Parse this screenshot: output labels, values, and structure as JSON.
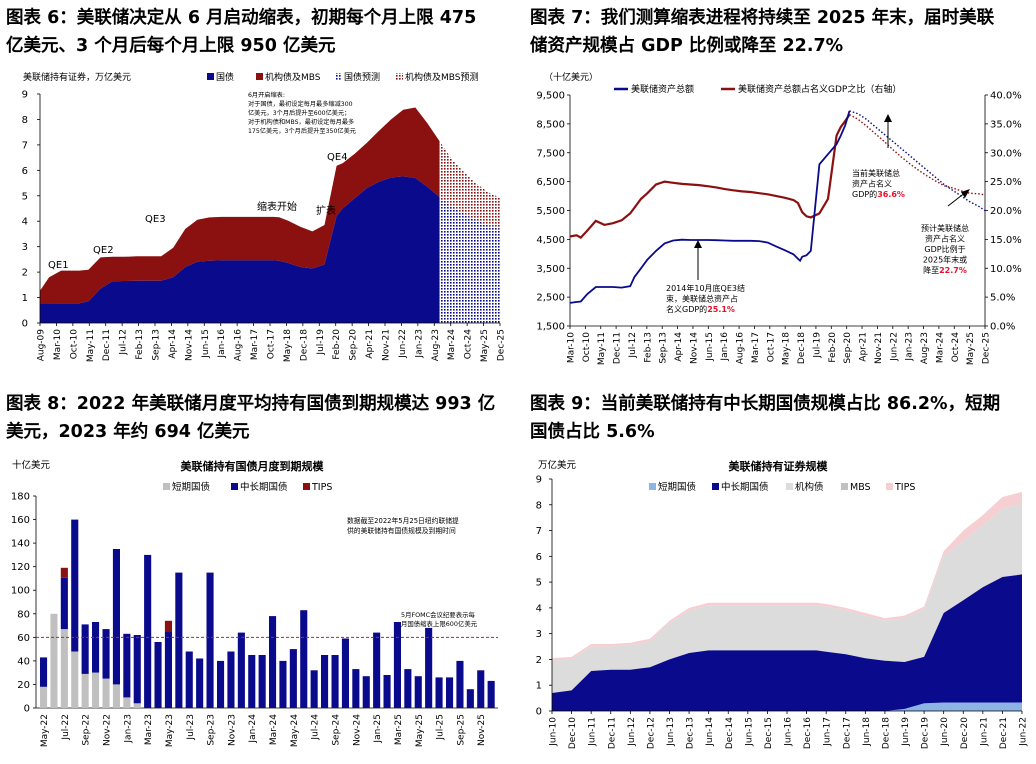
{
  "figures": [
    {
      "title_line1": "图表 6：美联储决定从 6 月启动缩表，初期每个月上限 475",
      "title_line2": "亿美元、3 个月后每个月上限 950 亿美元"
    },
    {
      "title_line1": "图表 7：我们测算缩表进程将持续至 2025 年末，届时美联",
      "title_line2": "储资产规模占 GDP 比例或降至 22.7%"
    },
    {
      "title_line1": "图表 8：2022 年美联储月度平均持有国债到期规模达 993 亿",
      "title_line2": "美元，2023 年约 694 亿美元"
    },
    {
      "title_line1": "图表 9：当前美联储持有中长期国债规模占比 86.2%，短期",
      "title_line2": "国债占比 5.6%"
    }
  ],
  "colors": {
    "navy": "#0a0a8c",
    "maroon": "#8b1010",
    "gray": "#c0c0c0",
    "light_gray": "#dcdcdc",
    "pink": "#f6cfd2",
    "light_blue": "#8cb4e4",
    "red": "#e8102a",
    "dash_red": "#c0202a"
  },
  "chart_data": [
    {
      "id": "fig6",
      "type": "area",
      "ylabel": "美联储持有证券，万亿美元",
      "ylim": [
        0,
        9
      ],
      "yticks": [
        "0",
        "1",
        "2",
        "3",
        "4",
        "5",
        "6",
        "7",
        "8",
        "9"
      ],
      "x_ticks": [
        "Aug-09",
        "Mar-10",
        "Oct-10",
        "May-11",
        "Dec-11",
        "Jul-12",
        "Feb-13",
        "Sep-13",
        "Apr-14",
        "Nov-14",
        "Jun-15",
        "Jan-16",
        "Aug-16",
        "Mar-17",
        "Oct-17",
        "May-18",
        "Dec-18",
        "Jul-19",
        "Feb-20",
        "Sep-20",
        "Apr-21",
        "Nov-21",
        "Jun-22",
        "Jan-23",
        "Aug-23",
        "Mar-24",
        "Oct-24",
        "May-25",
        "Dec-25"
      ],
      "legend": [
        {
          "label": "国债",
          "swatch": "navy"
        },
        {
          "label": "机构债及MBS",
          "swatch": "maroon"
        },
        {
          "label": "国债预测",
          "swatch": "navy-pattern"
        },
        {
          "label": "机构债及MBS预测",
          "swatch": "maroon-pattern"
        }
      ],
      "series_x": [
        0,
        3,
        7,
        10,
        13,
        16,
        20,
        24,
        28,
        32,
        36,
        40,
        44,
        48,
        52,
        56,
        60,
        64,
        68,
        72,
        75,
        76,
        77,
        79,
        82,
        86,
        90,
        94,
        98,
        100,
        104,
        108,
        112,
        116,
        120,
        124,
        128,
        132,
        136,
        140,
        144,
        148,
        152
      ],
      "treasury": [
        0.77,
        0.77,
        0.78,
        0.78,
        0.78,
        0.85,
        1.35,
        1.64,
        1.65,
        1.66,
        1.66,
        1.66,
        1.8,
        2.2,
        2.41,
        2.45,
        2.46,
        2.46,
        2.46,
        2.46,
        2.46,
        2.46,
        2.46,
        2.45,
        2.36,
        2.2,
        2.14,
        2.3,
        4.2,
        4.5,
        4.9,
        5.3,
        5.55,
        5.72,
        5.76,
        5.7,
        5.35,
        4.95,
        4.6,
        4.3,
        4.05,
        3.85,
        3.7
      ],
      "total": [
        1.27,
        1.8,
        2.06,
        2.06,
        2.06,
        2.09,
        2.58,
        2.6,
        2.6,
        2.62,
        2.62,
        2.62,
        2.96,
        3.7,
        4.06,
        4.15,
        4.17,
        4.17,
        4.17,
        4.17,
        4.17,
        4.17,
        4.17,
        4.16,
        4.02,
        3.78,
        3.6,
        3.85,
        6.18,
        6.28,
        6.65,
        7.08,
        7.55,
        8.0,
        8.38,
        8.47,
        7.85,
        7.15,
        6.45,
        5.95,
        5.5,
        5.15,
        4.92
      ],
      "forecast_start_index": 37,
      "annotations": [
        {
          "label": "QE1"
        },
        {
          "label": "QE2"
        },
        {
          "label": "QE3"
        },
        {
          "label": "缩表开始"
        },
        {
          "label": "扩表"
        },
        {
          "label": "QE4"
        }
      ],
      "note_lines": [
        "6月开启缩表:",
        "对于国债，最初设定每月最多缩减300",
        "亿美元，3个月后提升至600亿美元；",
        "对于机构债和MBS，最初设定每月最多",
        "175亿美元，3个月后提升至350亿美元"
      ]
    },
    {
      "id": "fig7",
      "type": "line",
      "unit_label": "（十亿美元）",
      "y_left_lim": [
        1500,
        9500
      ],
      "y_left_ticks": [
        "1,500",
        "2,500",
        "3,500",
        "4,500",
        "5,500",
        "6,500",
        "7,500",
        "8,500",
        "9,500"
      ],
      "y_right_lim": [
        0,
        40
      ],
      "y_right_ticks": [
        "0.0%",
        "5.0%",
        "10.0%",
        "15.0%",
        "20.0%",
        "25.0%",
        "30.0%",
        "35.0%",
        "40.0%"
      ],
      "x_ticks": [
        "Mar-10",
        "Oct-10",
        "May-11",
        "Dec-11",
        "Jul-12",
        "Feb-13",
        "Sep-13",
        "Apr-14",
        "Nov-14",
        "Jun-15",
        "Jan-16",
        "Aug-16",
        "Mar-17",
        "Oct-17",
        "May-18",
        "Dec-18",
        "Jul-19",
        "Feb-20",
        "Sep-20",
        "Apr-21",
        "Nov-21",
        "Jun-22",
        "Jan-23",
        "Aug-23",
        "Mar-24",
        "Oct-24",
        "May-25",
        "Dec-25"
      ],
      "legend": [
        {
          "label": "美联储资产总额",
          "swatch": "navy"
        },
        {
          "label": "美联储资产总额占名义GDP之比（右轴）",
          "swatch": "maroon"
        }
      ],
      "assets_x": [
        0,
        3,
        5,
        8,
        12,
        16,
        20,
        24,
        28,
        30,
        33,
        36,
        40,
        44,
        48,
        52,
        56,
        60,
        64,
        68,
        72,
        76,
        80,
        84,
        88,
        92,
        96,
        100,
        104,
        106,
        107,
        108,
        110,
        112,
        116,
        120,
        124,
        126,
        128,
        130
      ],
      "assets": [
        2300,
        2330,
        2350,
        2600,
        2850,
        2850,
        2850,
        2830,
        2880,
        3200,
        3500,
        3800,
        4100,
        4360,
        4460,
        4490,
        4480,
        4480,
        4480,
        4470,
        4460,
        4450,
        4450,
        4450,
        4440,
        4390,
        4250,
        4120,
        3980,
        3830,
        3760,
        3900,
        3950,
        4100,
        7100,
        7450,
        7800,
        8100,
        8450,
        8950
      ],
      "gdp_ratio": [
        15.5,
        15.7,
        15.3,
        16.5,
        18.2,
        17.5,
        17.8,
        18.3,
        19.5,
        20.5,
        22,
        23,
        24.5,
        25.0,
        24.8,
        24.6,
        24.5,
        24.4,
        24.2,
        24.0,
        23.7,
        23.5,
        23.3,
        23.2,
        23.0,
        22.8,
        22.5,
        22.2,
        21.8,
        21.3,
        20.5,
        19.7,
        19.0,
        18.8,
        19.5,
        22,
        33,
        34.5,
        35.5,
        36.6
      ],
      "forecast_x": [
        130,
        134,
        138,
        142,
        146,
        150,
        154,
        158,
        162,
        166,
        170,
        174,
        178,
        182,
        186,
        190,
        193
      ],
      "assets_forecast": [
        8950,
        8850,
        8650,
        8400,
        8150,
        7900,
        7650,
        7400,
        7150,
        6900,
        6650,
        6400,
        6200,
        6000,
        5800,
        5650,
        5500
      ],
      "gdp_ratio_forecast": [
        36.6,
        35.8,
        34.6,
        33.3,
        32.0,
        30.6,
        29.3,
        28.1,
        27.0,
        26.0,
        25.1,
        24.3,
        23.9,
        23.4,
        23.0,
        22.9,
        22.7
      ],
      "annotation_2014": {
        "lines": [
          "2014年10月底QE3结",
          "束，美联储总资产占",
          "名义GDP的"
        ],
        "value": "25.1%"
      },
      "annotation_current": {
        "lines": [
          "当前美联储总",
          "资产占名义",
          "GDP的"
        ],
        "value": "36.6%"
      },
      "annotation_forecast": {
        "lines": [
          "预计美联储总",
          "资产占名义",
          "GDP比例于",
          "2025年末或",
          "降至"
        ],
        "value": "22.7%"
      }
    },
    {
      "id": "fig8",
      "type": "bar",
      "title": "美联储持有国债月度到期规模",
      "unit": "十亿美元",
      "ylim": [
        0,
        180
      ],
      "yticks": [
        "0",
        "20",
        "40",
        "60",
        "80",
        "100",
        "120",
        "140",
        "160",
        "180"
      ],
      "x_ticks": [
        "May-22",
        "Jul-22",
        "Sep-22",
        "Nov-22",
        "Jan-23",
        "Mar-23",
        "May-23",
        "Jul-23",
        "Sep-23",
        "Nov-23",
        "Jan-24",
        "Mar-24",
        "May-24",
        "Jul-24",
        "Sep-24",
        "Nov-24",
        "Jan-25",
        "Mar-25",
        "May-25",
        "Jul-25",
        "Sep-25",
        "Nov-25"
      ],
      "legend": [
        {
          "label": "短期国债",
          "swatch": "gray"
        },
        {
          "label": "中长期国债",
          "swatch": "navy"
        },
        {
          "label": "TIPS",
          "swatch": "maroon"
        }
      ],
      "bills": [
        18,
        80,
        67,
        48,
        29,
        30,
        25,
        20,
        9,
        4,
        0,
        0,
        0,
        0,
        0,
        0,
        0,
        0,
        0,
        0,
        0,
        0,
        0,
        0,
        0,
        0,
        0,
        0,
        0,
        0,
        0,
        0,
        0,
        0,
        0,
        0,
        0,
        0,
        0,
        0,
        0,
        0,
        0,
        0
      ],
      "coupons": [
        25,
        0,
        44,
        112,
        42,
        43,
        42,
        115,
        54,
        58,
        130,
        56,
        65,
        115,
        48,
        42,
        115,
        40,
        48,
        64,
        45,
        45,
        78,
        40,
        50,
        83,
        32,
        45,
        45,
        59,
        33,
        27,
        64,
        28,
        73,
        33,
        27,
        68,
        26,
        26,
        40,
        16,
        32,
        23
      ],
      "tips": [
        0,
        0,
        8,
        0,
        0,
        0,
        0,
        0,
        0,
        0,
        0,
        0,
        9,
        0,
        0,
        0,
        0,
        0,
        0,
        0,
        0,
        0,
        0,
        0,
        0,
        0,
        0,
        0,
        0,
        0,
        0,
        0,
        0,
        0,
        0,
        0,
        0,
        0,
        0,
        0,
        0,
        0,
        0,
        0
      ],
      "cap_line": 60,
      "note_lines": [
        "数据截至2022年5月25日纽约联储提",
        "供的美联储持有国债规模及到期时间"
      ],
      "cap_note_lines": [
        "5月FOMC会议纪要表示每",
        "月国债缩表上限600亿美元"
      ]
    },
    {
      "id": "fig9",
      "type": "area",
      "title": "美联储持有证券规模",
      "unit": "万亿美元",
      "ylim": [
        0,
        9
      ],
      "yticks": [
        "0",
        "1",
        "2",
        "3",
        "4",
        "5",
        "6",
        "7",
        "8",
        "9"
      ],
      "x_ticks": [
        "Jun-10",
        "Dec-10",
        "Jun-11",
        "Dec-11",
        "Jun-12",
        "Dec-12",
        "Jun-13",
        "Dec-13",
        "Jun-14",
        "Dec-14",
        "Jun-15",
        "Dec-15",
        "Jun-16",
        "Dec-16",
        "Jun-17",
        "Dec-17",
        "Jun-18",
        "Dec-18",
        "Jun-19",
        "Dec-19",
        "Jun-20",
        "Dec-20",
        "Jun-21",
        "Dec-21",
        "Jun-22"
      ],
      "legend": [
        {
          "label": "短期国债",
          "swatch": "light_blue"
        },
        {
          "label": "中长期国债",
          "swatch": "navy"
        },
        {
          "label": "机构债",
          "swatch": "light_gray"
        },
        {
          "label": "MBS",
          "swatch": "gray"
        },
        {
          "label": "TIPS",
          "swatch": "pink"
        }
      ],
      "series_x": [
        0,
        2,
        4,
        6,
        8,
        10,
        12,
        14,
        16,
        18,
        20,
        22,
        24,
        26,
        27,
        28,
        30,
        32,
        34,
        36,
        38,
        40,
        42,
        44,
        46,
        48
      ],
      "bills": [
        0,
        0,
        0,
        0,
        0,
        0,
        0,
        0,
        0,
        0,
        0,
        0,
        0,
        0,
        0,
        0,
        0,
        0,
        0,
        0.08,
        0.3,
        0.33,
        0.33,
        0.33,
        0.33,
        0.33
      ],
      "treasury": [
        0.7,
        0.8,
        1.55,
        1.6,
        1.6,
        1.7,
        2.0,
        2.25,
        2.35,
        2.35,
        2.35,
        2.35,
        2.35,
        2.35,
        2.35,
        2.3,
        2.2,
        2.05,
        1.95,
        1.9,
        2.1,
        3.8,
        4.3,
        4.8,
        5.2,
        5.3
      ],
      "total": [
        2.05,
        2.1,
        2.6,
        2.6,
        2.65,
        2.8,
        3.5,
        4.0,
        4.2,
        4.2,
        4.2,
        4.2,
        4.2,
        4.2,
        4.2,
        4.15,
        4.0,
        3.8,
        3.6,
        3.7,
        4.05,
        6.2,
        7.0,
        7.6,
        8.3,
        8.5
      ],
      "mbs_top": [
        1.95,
        2.0,
        2.5,
        2.5,
        2.55,
        2.7,
        3.4,
        3.9,
        4.1,
        4.1,
        4.1,
        4.1,
        4.1,
        4.1,
        4.1,
        4.05,
        3.9,
        3.7,
        3.5,
        3.6,
        3.95,
        6.0,
        6.6,
        7.2,
        7.85,
        8.05
      ]
    }
  ]
}
